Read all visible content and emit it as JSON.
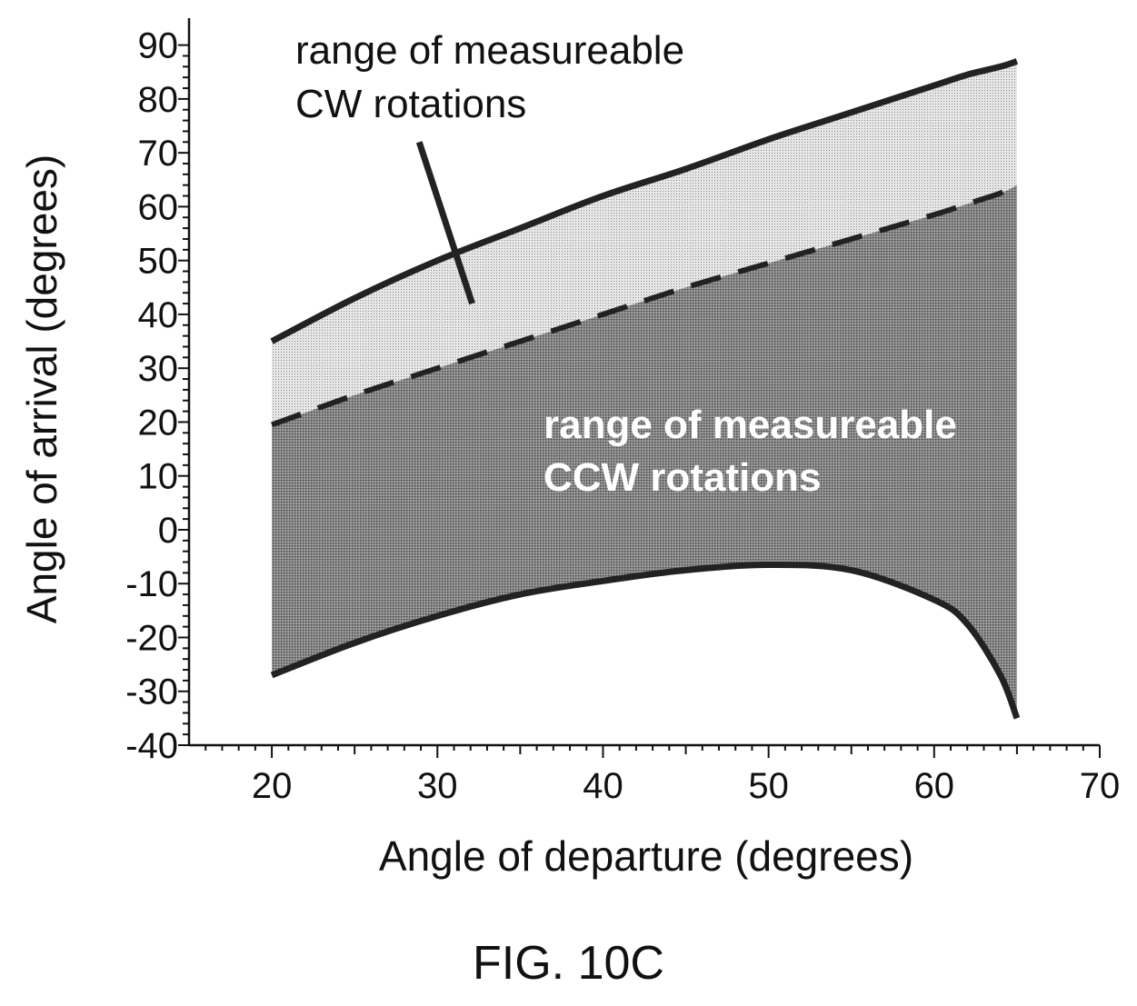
{
  "figure": {
    "caption": "FIG. 10C"
  },
  "chart_data": {
    "type": "area",
    "xlabel": "Angle of departure (degrees)",
    "ylabel": "Angle of arrival (degrees)",
    "xlim": [
      15,
      70
    ],
    "ylim": [
      -40,
      95
    ],
    "xticks": [
      20,
      30,
      40,
      50,
      60,
      70
    ],
    "yticks": [
      -40,
      -30,
      -20,
      -10,
      0,
      10,
      20,
      30,
      40,
      50,
      60,
      70,
      80,
      90
    ],
    "grid": false,
    "x": [
      20,
      25,
      30,
      35,
      40,
      45,
      50,
      55,
      60,
      62,
      64,
      65
    ],
    "series": [
      {
        "style": "solid",
        "values": [
          35,
          43,
          50,
          56,
          62,
          67,
          72.5,
          77.5,
          82.5,
          84.5,
          86,
          87
        ]
      },
      {
        "style": "dashed",
        "values": [
          19.5,
          25,
          30,
          35,
          40,
          45,
          49.5,
          54,
          58.5,
          60.5,
          62.5,
          64
        ]
      },
      {
        "style": "solid",
        "values": [
          -27,
          -21,
          -16,
          -12,
          -9.5,
          -7.5,
          -6.5,
          -7.5,
          -13,
          -17.5,
          -27,
          -35
        ]
      }
    ],
    "regions": [
      {
        "label": "range of measureable CW rotations",
        "between": [
          0,
          1
        ],
        "shade": "light"
      },
      {
        "label": "range of measureable CCW rotations",
        "between": [
          1,
          2
        ],
        "shade": "dark"
      }
    ],
    "annotations": {
      "cw": [
        "range of measureable",
        "CW rotations"
      ],
      "ccw": [
        "range of measureable",
        "CCW rotations"
      ]
    }
  }
}
